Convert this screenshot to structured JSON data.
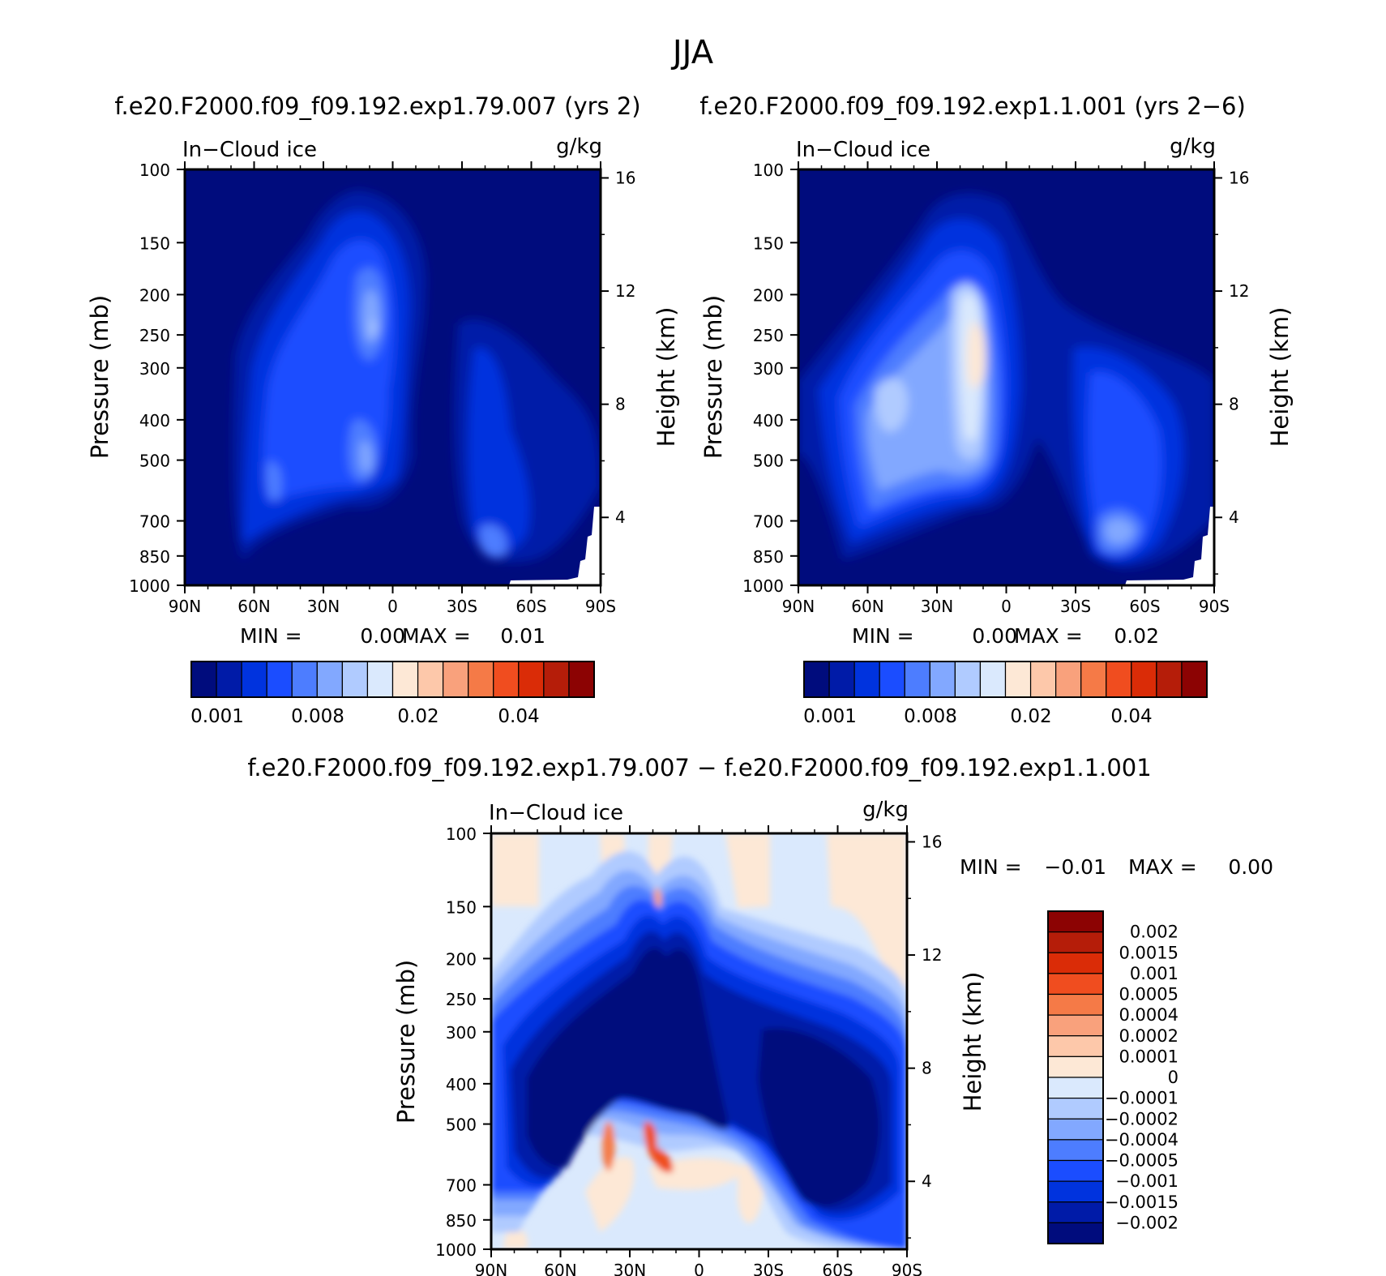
{
  "page_title": "JJA",
  "chart_data": [
    {
      "type": "heatmap",
      "title": "f.e20.F2000.f09_f09.192.exp1.79.007 (yrs 2)",
      "variable": "In−Cloud ice",
      "units": "g/kg",
      "ylabel": "Pressure (mb)",
      "y2label": "Height (km)",
      "x_ticks": [
        "90N",
        "60N",
        "30N",
        "0",
        "30S",
        "60S",
        "90S"
      ],
      "y_ticks": [
        "100",
        "150",
        "200",
        "250",
        "300",
        "400",
        "500",
        "700",
        "850",
        "1000"
      ],
      "y2_ticks": [
        "16",
        "12",
        "8",
        "4"
      ],
      "min_label": "MIN =",
      "min_value": "0.00",
      "max_label": "MAX =",
      "max_value": "0.01",
      "colorbar_labels": [
        "0.001",
        "0.008",
        "0.02",
        "0.04"
      ],
      "levels": [
        0.001,
        0.002,
        0.004,
        0.006,
        0.008,
        0.01,
        0.012,
        0.015,
        0.02,
        0.025,
        0.03,
        0.035,
        0.04,
        0.045,
        0.05
      ],
      "peak_estimate": 0.012
    },
    {
      "type": "heatmap",
      "title": "f.e20.F2000.f09_f09.192.exp1.1.001 (yrs 2−6)",
      "variable": "In−Cloud ice",
      "units": "g/kg",
      "ylabel": "Pressure (mb)",
      "y2label": "Height (km)",
      "x_ticks": [
        "90N",
        "60N",
        "30N",
        "0",
        "30S",
        "60S",
        "90S"
      ],
      "y_ticks": [
        "100",
        "150",
        "200",
        "250",
        "300",
        "400",
        "500",
        "700",
        "850",
        "1000"
      ],
      "y2_ticks": [
        "16",
        "12",
        "8",
        "4"
      ],
      "min_label": "MIN =",
      "min_value": "0.00",
      "max_label": "MAX =",
      "max_value": "0.02",
      "colorbar_labels": [
        "0.001",
        "0.008",
        "0.02",
        "0.04"
      ],
      "levels": [
        0.001,
        0.002,
        0.004,
        0.006,
        0.008,
        0.01,
        0.012,
        0.015,
        0.02,
        0.025,
        0.03,
        0.035,
        0.04,
        0.045,
        0.05
      ],
      "peak_estimate": 0.02
    },
    {
      "type": "heatmap",
      "title": "f.e20.F2000.f09_f09.192.exp1.79.007 − f.e20.F2000.f09_f09.192.exp1.1.001",
      "variable": "In−Cloud ice",
      "units": "g/kg",
      "ylabel": "Pressure (mb)",
      "y2label": "Height (km)",
      "x_ticks": [
        "90N",
        "60N",
        "30N",
        "0",
        "30S",
        "60S",
        "90S"
      ],
      "y_ticks": [
        "100",
        "150",
        "200",
        "250",
        "300",
        "400",
        "500",
        "700",
        "850",
        "1000"
      ],
      "y2_ticks": [
        "16",
        "12",
        "8",
        "4"
      ],
      "min_label": "MIN =",
      "min_value": "−0.01",
      "max_label": "MAX =",
      "max_value": "0.00",
      "colorbar_labels": [
        "0.002",
        "0.0015",
        "0.001",
        "0.0005",
        "0.0004",
        "0.0002",
        "0.0001",
        "0",
        "−0.0001",
        "−0.0002",
        "−0.0004",
        "−0.0005",
        "−0.001",
        "−0.0015",
        "−0.002"
      ]
    }
  ],
  "colors": {
    "seq": [
      "#000c7d",
      "#001ba8",
      "#0033de",
      "#1b4dff",
      "#4d7dff",
      "#82a8ff",
      "#b0cbff",
      "#dae9fd",
      "#fde8d6",
      "#fdc8aa",
      "#f9a17c",
      "#f57a47",
      "#f04d1f",
      "#da2c07",
      "#b51d09",
      "#8c0303"
    ],
    "diff_top_to_bottom": [
      "#8c0303",
      "#b51d09",
      "#da2c07",
      "#f04d1f",
      "#f57a47",
      "#f9a17c",
      "#fdc8aa",
      "#fde8d6",
      "#dae9fd",
      "#b0cbff",
      "#82a8ff",
      "#4d7dff",
      "#1b4dff",
      "#0033de",
      "#001ba8",
      "#000c7d"
    ]
  }
}
